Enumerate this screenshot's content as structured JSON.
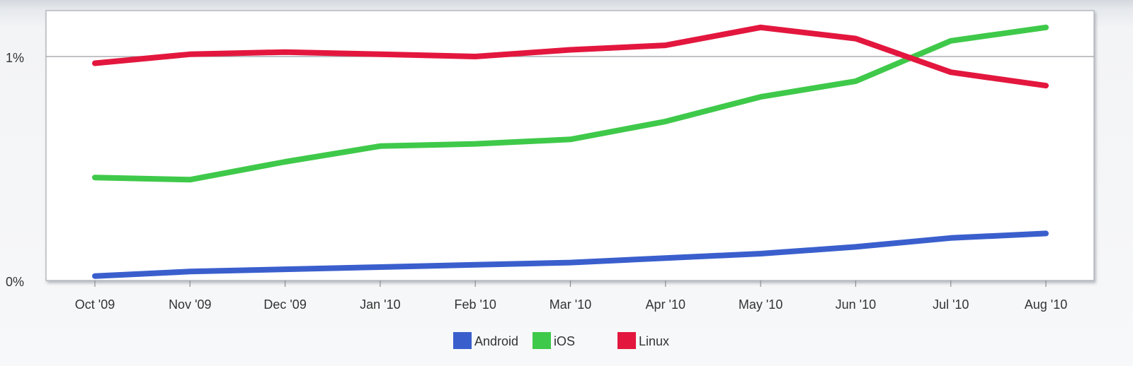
{
  "chart_data": {
    "type": "line",
    "title": "",
    "xlabel": "",
    "ylabel": "",
    "categories": [
      "Oct '09",
      "Nov '09",
      "Dec '09",
      "Jan '10",
      "Feb '10",
      "Mar '10",
      "Apr '10",
      "May '10",
      "Jun '10",
      "Jul '10",
      "Aug '10"
    ],
    "yticks": [
      {
        "value": 0,
        "label": "0%"
      },
      {
        "value": 1,
        "label": "1%"
      }
    ],
    "ylim": [
      0,
      1.2
    ],
    "grid": "horizontal at 1%",
    "legend_position": "bottom-center",
    "series": [
      {
        "name": "Android",
        "color": "#3a5fcd",
        "values": [
          0.02,
          0.04,
          0.05,
          0.06,
          0.07,
          0.08,
          0.1,
          0.12,
          0.15,
          0.19,
          0.21
        ]
      },
      {
        "name": "iOS",
        "color": "#3fc94a",
        "values": [
          0.46,
          0.45,
          0.53,
          0.6,
          0.61,
          0.63,
          0.71,
          0.82,
          0.89,
          1.07,
          1.13
        ]
      },
      {
        "name": "Linux",
        "color": "#e3173e",
        "values": [
          0.97,
          1.01,
          1.02,
          1.01,
          1.0,
          1.03,
          1.05,
          1.13,
          1.08,
          0.93,
          0.87
        ]
      }
    ]
  }
}
